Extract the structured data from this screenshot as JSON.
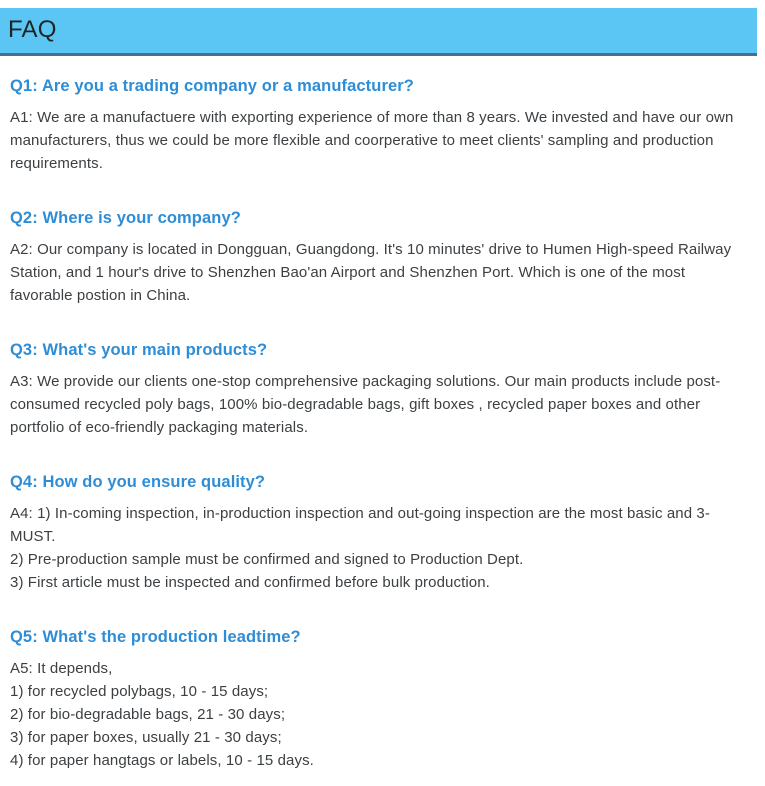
{
  "header": {
    "title": "FAQ"
  },
  "colors": {
    "header_background": "#5bc6f3",
    "header_border_bottom": "#466f92",
    "header_title_color": "#1f2428",
    "question_color": "#2d8dd6",
    "answer_color": "#3c4043",
    "page_background": "#ffffff"
  },
  "faq": {
    "items": [
      {
        "question": "Q1: Are you a trading company or a manufacturer?",
        "answer_lines": [
          "A1: We are a manufactuere with exporting experience of more than 8 years. We invested and have our own manufacturers, thus we could be more flexible and coorperative to meet clients' sampling and production requirements."
        ]
      },
      {
        "question": "Q2: Where is your company?",
        "answer_lines": [
          "A2: Our company is located in Dongguan, Guangdong. It's 10 minutes' drive to Humen High-speed Railway Station, and 1 hour's drive to Shenzhen Bao'an Airport and Shenzhen Port. Which is one of the most favorable postion in China."
        ]
      },
      {
        "question": "Q3: What's your main products?",
        "answer_lines": [
          "A3: We provide our clients one-stop comprehensive packaging solutions. Our main products include post-consumed recycled poly bags, 100% bio-degradable bags, gift boxes , recycled paper boxes and other portfolio of eco-friendly packaging materials."
        ]
      },
      {
        "question": "Q4: How do you ensure quality?",
        "answer_lines": [
          "A4: 1) In-coming inspection, in-production inspection and out-going inspection are the most basic and 3-MUST.",
          "2) Pre-production sample must be confirmed and signed to Production Dept.",
          "3) First article must be inspected and confirmed before bulk production."
        ]
      },
      {
        "question": "Q5: What's the production leadtime?",
        "answer_lines": [
          "A5: It depends,",
          "1) for recycled polybags, 10 - 15 days;",
          "2) for bio-degradable bags, 21 - 30 days;",
          "3) for paper boxes, usually 21 - 30 days;",
          "4) for paper hangtags or labels, 10 - 15 days."
        ]
      }
    ]
  }
}
